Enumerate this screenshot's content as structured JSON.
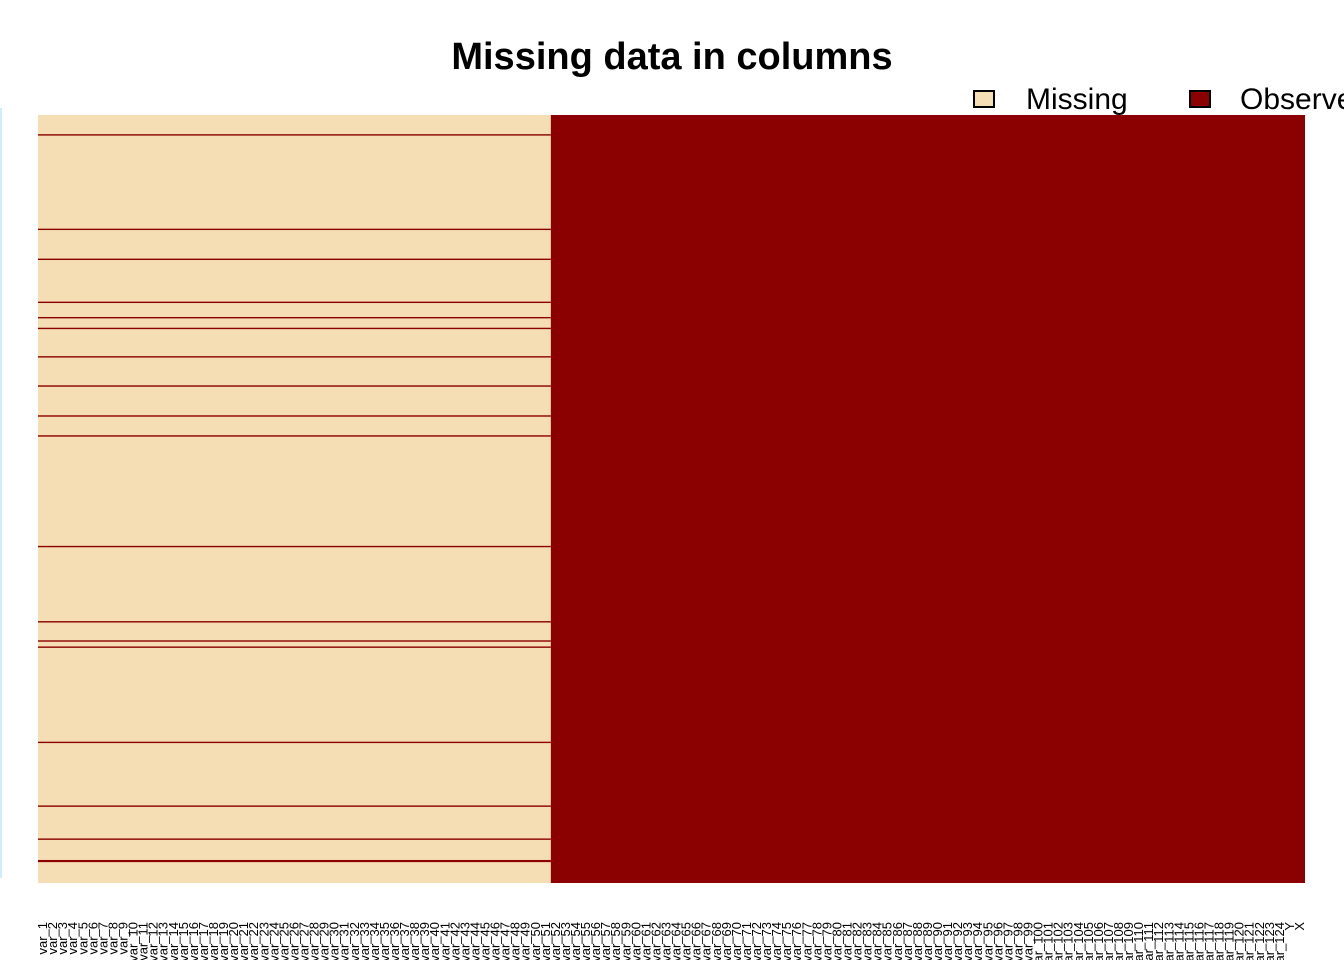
{
  "chart_data": {
    "type": "heatmap",
    "title": "Missing data in columns",
    "legend": {
      "placement": "top-right",
      "entries": [
        {
          "label": "Missing",
          "color": "#F5DEB3"
        },
        {
          "label": "Observed",
          "color": "#8B0000"
        }
      ]
    },
    "colors": {
      "missing": "#F5DEB3",
      "observed": "#8B0000"
    },
    "n_rows": 1000,
    "n_columns": 126,
    "missing_columns": 51,
    "fully_missing_rows_in_missing_block": false,
    "observed_rows_in_missing_columns": [
      25,
      148,
      187,
      243,
      263,
      277,
      314,
      352,
      391,
      417,
      561,
      659,
      684,
      692,
      816,
      899,
      942,
      970,
      971
    ],
    "column_labels": [
      "var_1",
      "var_2",
      "var_3",
      "var_4",
      "var_5",
      "var_6",
      "var_7",
      "var_8",
      "var_9",
      "var_10",
      "var_11",
      "var_12",
      "var_13",
      "var_14",
      "var_15",
      "var_16",
      "var_17",
      "var_18",
      "var_19",
      "var_20",
      "var_21",
      "var_22",
      "var_23",
      "var_24",
      "var_25",
      "var_26",
      "var_27",
      "var_28",
      "var_29",
      "var_30",
      "var_31",
      "var_32",
      "var_33",
      "var_34",
      "var_35",
      "var_36",
      "var_37",
      "var_38",
      "var_39",
      "var_40",
      "var_41",
      "var_42",
      "var_43",
      "var_44",
      "var_45",
      "var_46",
      "var_47",
      "var_48",
      "var_49",
      "var_50",
      "var_51",
      "var_52",
      "var_53",
      "var_54",
      "var_55",
      "var_56",
      "var_57",
      "var_58",
      "var_59",
      "var_60",
      "var_61",
      "var_62",
      "var_63",
      "var_64",
      "var_65",
      "var_66",
      "var_67",
      "var_68",
      "var_69",
      "var_70",
      "var_71",
      "var_72",
      "var_73",
      "var_74",
      "var_75",
      "var_76",
      "var_77",
      "var_78",
      "var_79",
      "var_80",
      "var_81",
      "var_82",
      "var_83",
      "var_84",
      "var_85",
      "var_86",
      "var_87",
      "var_88",
      "var_89",
      "var_90",
      "var_91",
      "var_92",
      "var_93",
      "var_94",
      "var_95",
      "var_96",
      "var_97",
      "var_98",
      "var_99",
      "var_100",
      "var_101",
      "var_102",
      "var_103",
      "var_104",
      "var_105",
      "var_106",
      "var_107",
      "var_108",
      "var_109",
      "var_110",
      "var_111",
      "var_112",
      "var_113",
      "var_114",
      "var_115",
      "var_116",
      "var_117",
      "var_118",
      "var_119",
      "var_120",
      "var_121",
      "var_122",
      "var_123",
      "var_124",
      "Y",
      "X"
    ]
  }
}
